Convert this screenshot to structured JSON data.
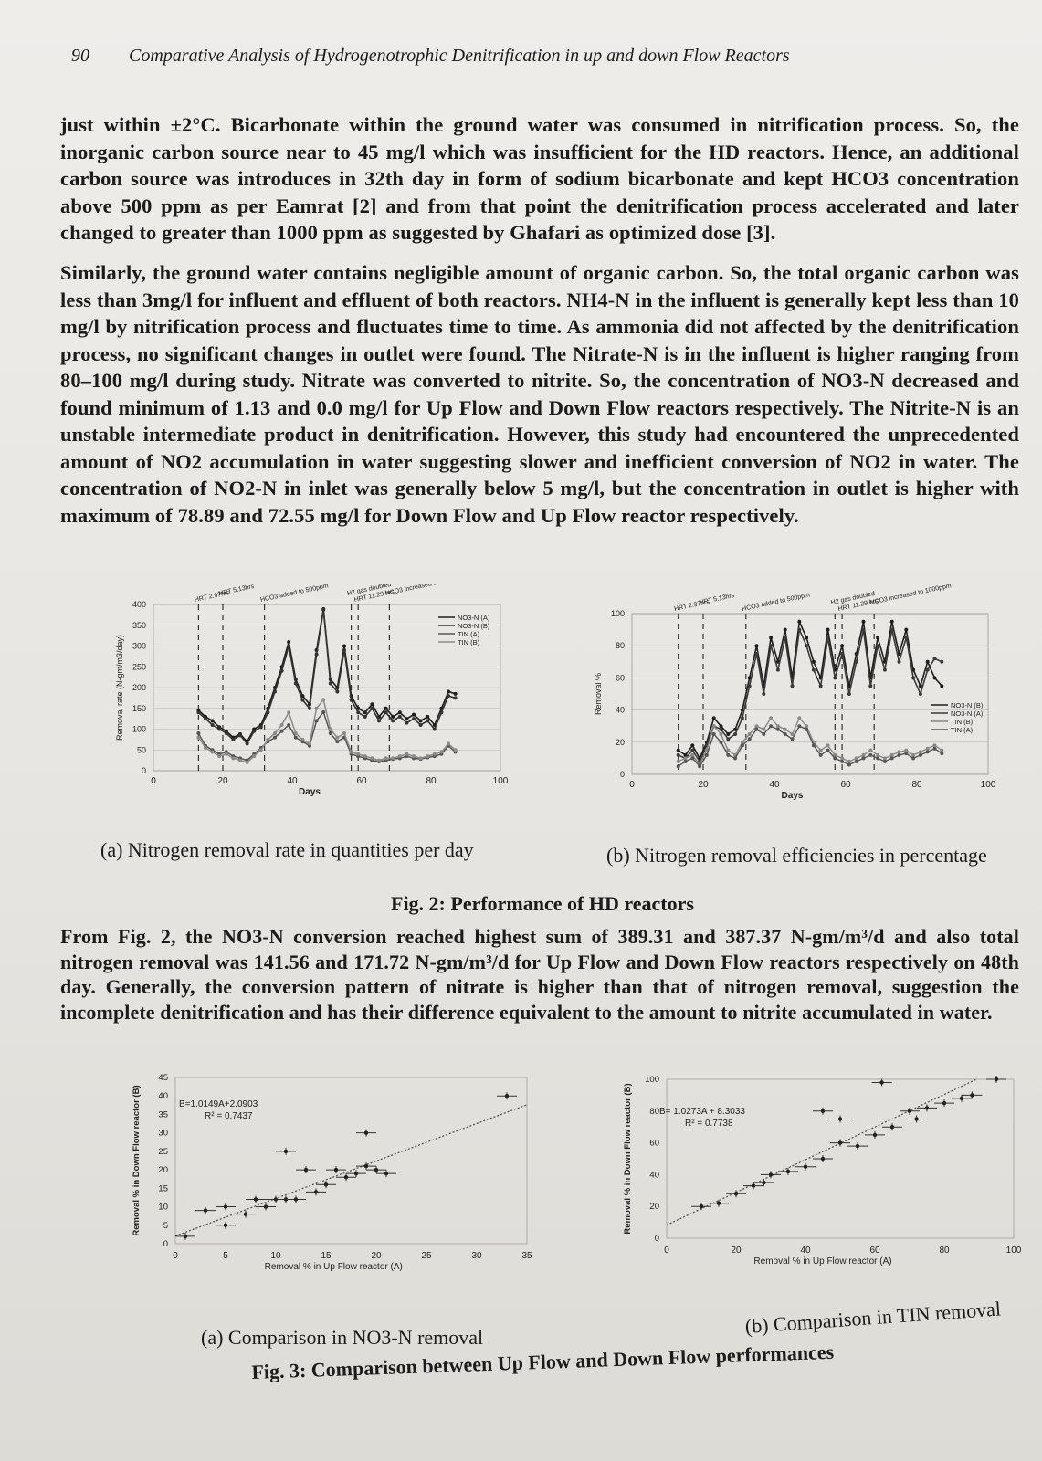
{
  "header": {
    "page_number": "90",
    "running_title": "Comparative Analysis of Hydrogenotrophic Denitrification in up and down Flow Reactors"
  },
  "paragraphs": {
    "p1": "just within ±2°C. Bicarbonate within the ground water was consumed in nitrification process. So, the inorganic carbon source near to 45 mg/l which was insufficient for the HD reactors. Hence, an additional carbon source was introduces in 32th day in form of sodium bicarbonate and kept HCO3 concentration above 500 ppm as per Eamrat [2] and from that point the denitrification process accelerated and later changed to greater than 1000 ppm as suggested by Ghafari as optimized dose [3].",
    "p2": "Similarly, the ground water contains negligible amount of organic carbon. So, the total organic carbon was less than 3mg/l for influent and effluent of both reactors. NH4-N in the influent is generally kept less than 10 mg/l by nitrification process and fluctuates time to time. As ammonia did not affected by the denitrification process, no significant changes in outlet were found. The Nitrate-N is in the influent is higher ranging from 80–100 mg/l during study. Nitrate was converted to nitrite. So, the concentration of NO3-N decreased and found minimum of 1.13 and 0.0 mg/l for Up Flow and Down Flow reactors respectively. The Nitrite-N is an unstable intermediate product in denitrification. However, this study had encountered the unprecedented amount of NO2 accumulation in water suggesting slower and inefficient conversion of NO2 in water. The concentration of NO2-N in inlet was generally below 5 mg/l, but the concentration in outlet is higher with maximum of 78.89 and 72.55 mg/l for Down Flow and Up Flow reactor respectively.",
    "p3": "From Fig. 2, the NO3-N conversion reached highest sum of 389.31 and 387.37 N-gm/m³/d and also total nitrogen removal was 141.56 and 171.72 N-gm/m³/d for Up Flow and Down Flow reactors respectively on 48th day. Generally, the conversion pattern of nitrate is higher than that of nitrogen removal, suggestion the incomplete denitrification and has their difference equivalent to the amount to nitrite accumulated in water."
  },
  "fig2": {
    "caption_a": "(a)  Nitrogen removal rate in quantities per day",
    "caption_b": "(b)  Nitrogen removal efficiencies in percentage",
    "title": "Fig. 2: Performance of HD reactors"
  },
  "fig3": {
    "caption_a": "(a)  Comparison in NO3-N removal",
    "caption_b": "(b)  Comparison in TIN removal",
    "title": "Fig. 3: Comparison between Up Flow and Down Flow performances"
  },
  "chart_data": [
    {
      "id": "fig2a",
      "type": "line",
      "xlabel": "Days",
      "ylabel": "Removal rate (N-gm/m3/day)",
      "xlim": [
        0,
        100
      ],
      "ylim": [
        0,
        400
      ],
      "xticks": [
        0,
        20,
        40,
        60,
        80,
        100
      ],
      "yticks": [
        0,
        50,
        100,
        150,
        200,
        250,
        300,
        350,
        400
      ],
      "grid": true,
      "legend_position": "top-right",
      "annotations": [
        {
          "x": 13,
          "text": "HRT 2.97hrs"
        },
        {
          "x": 20,
          "text": "HRT 5.13hrs"
        },
        {
          "x": 32,
          "text": "HCO3 added to 500ppm"
        },
        {
          "x": 57,
          "text": "H2 gas doubled"
        },
        {
          "x": 59,
          "text": "HRT 11.29 hrs"
        },
        {
          "x": 68,
          "text": "HCO3 increased to 1000ppm"
        }
      ],
      "x": [
        13,
        15,
        17,
        19,
        21,
        23,
        25,
        27,
        29,
        31,
        33,
        35,
        37,
        39,
        41,
        43,
        45,
        47,
        49,
        51,
        53,
        55,
        57,
        59,
        61,
        63,
        65,
        67,
        69,
        71,
        73,
        75,
        77,
        79,
        81,
        83,
        85,
        87
      ],
      "series": [
        {
          "name": "NO3-N (A)",
          "values": [
            145,
            130,
            120,
            105,
            95,
            80,
            88,
            70,
            100,
            110,
            150,
            200,
            250,
            310,
            220,
            180,
            160,
            290,
            389,
            220,
            200,
            300,
            180,
            150,
            140,
            160,
            130,
            150,
            130,
            140,
            125,
            135,
            120,
            130,
            110,
            150,
            190,
            185
          ]
        },
        {
          "name": "NO3-N (B)",
          "values": [
            140,
            125,
            110,
            100,
            90,
            75,
            85,
            65,
            95,
            105,
            140,
            190,
            240,
            300,
            210,
            170,
            150,
            280,
            387,
            210,
            190,
            290,
            170,
            140,
            130,
            150,
            120,
            140,
            120,
            130,
            115,
            125,
            110,
            120,
            100,
            140,
            180,
            175
          ]
        },
        {
          "name": "TIN (A)",
          "values": [
            90,
            60,
            50,
            40,
            45,
            35,
            30,
            25,
            40,
            55,
            70,
            80,
            95,
            110,
            80,
            70,
            60,
            120,
            141,
            90,
            70,
            80,
            40,
            35,
            30,
            25,
            22,
            25,
            28,
            30,
            35,
            30,
            28,
            32,
            35,
            40,
            60,
            45
          ]
        },
        {
          "name": "TIN (B)",
          "values": [
            80,
            55,
            45,
            35,
            40,
            30,
            25,
            20,
            35,
            50,
            75,
            90,
            110,
            140,
            90,
            75,
            65,
            150,
            171,
            100,
            80,
            90,
            45,
            40,
            35,
            30,
            25,
            30,
            30,
            35,
            40,
            35,
            30,
            35,
            40,
            45,
            65,
            50
          ]
        }
      ]
    },
    {
      "id": "fig2b",
      "type": "line",
      "xlabel": "Days",
      "ylabel": "Removal %",
      "xlim": [
        0,
        100
      ],
      "ylim": [
        0,
        100
      ],
      "xticks": [
        0,
        20,
        40,
        60,
        80,
        100
      ],
      "yticks": [
        0,
        20,
        40,
        60,
        80,
        100
      ],
      "grid": true,
      "legend_position": "right",
      "annotations": [
        {
          "x": 13,
          "text": "HRT 2.97hrs"
        },
        {
          "x": 20,
          "text": "HRT 5.13hrs"
        },
        {
          "x": 32,
          "text": "HCO3 added to 500ppm"
        },
        {
          "x": 57,
          "text": "H2 gas doubled"
        },
        {
          "x": 59,
          "text": "HRT 11.29 hrs"
        },
        {
          "x": 68,
          "text": "HCO3 increased to 1000ppm"
        }
      ],
      "x": [
        13,
        15,
        17,
        19,
        21,
        23,
        25,
        27,
        29,
        31,
        33,
        35,
        37,
        39,
        41,
        43,
        45,
        47,
        49,
        51,
        53,
        55,
        57,
        59,
        61,
        63,
        65,
        67,
        69,
        71,
        73,
        75,
        77,
        79,
        81,
        83,
        85,
        87
      ],
      "series": [
        {
          "name": "NO3-N (B)",
          "values": [
            15,
            12,
            18,
            10,
            20,
            35,
            30,
            25,
            28,
            40,
            60,
            80,
            55,
            85,
            70,
            90,
            60,
            95,
            85,
            70,
            60,
            90,
            65,
            80,
            55,
            75,
            95,
            60,
            85,
            70,
            95,
            75,
            90,
            65,
            55,
            70,
            60,
            55
          ]
        },
        {
          "name": "NO3-N (A)",
          "values": [
            12,
            10,
            15,
            8,
            18,
            30,
            28,
            22,
            25,
            35,
            55,
            75,
            50,
            80,
            65,
            85,
            55,
            90,
            80,
            65,
            55,
            85,
            60,
            75,
            50,
            70,
            90,
            55,
            80,
            65,
            90,
            70,
            85,
            60,
            50,
            65,
            72,
            70
          ]
        },
        {
          "name": "TIN (B)",
          "values": [
            8,
            10,
            12,
            6,
            15,
            30,
            25,
            15,
            12,
            20,
            25,
            30,
            28,
            35,
            30,
            28,
            25,
            35,
            30,
            20,
            15,
            18,
            12,
            10,
            8,
            10,
            12,
            15,
            12,
            10,
            12,
            14,
            15,
            12,
            14,
            16,
            18,
            15
          ]
        },
        {
          "name": "TIN (A)",
          "values": [
            5,
            8,
            10,
            5,
            12,
            25,
            20,
            12,
            10,
            18,
            22,
            28,
            25,
            30,
            28,
            25,
            22,
            30,
            28,
            18,
            12,
            15,
            10,
            8,
            6,
            8,
            10,
            12,
            10,
            8,
            10,
            12,
            13,
            10,
            12,
            14,
            16,
            13
          ]
        }
      ]
    },
    {
      "id": "fig3a",
      "type": "scatter",
      "xlabel": "Removal % in Up Flow reactor (A)",
      "ylabel": "Removal % in Down Flow reactor (B)",
      "xlim": [
        0,
        35
      ],
      "ylim": [
        0,
        45
      ],
      "xticks": [
        0,
        5,
        10,
        15,
        20,
        25,
        30,
        35
      ],
      "yticks": [
        0,
        5,
        10,
        15,
        20,
        25,
        30,
        35,
        40,
        45
      ],
      "equation": "B=1.0149A+2.0903",
      "r_squared": "R² = 0.7437",
      "points": [
        [
          1,
          2
        ],
        [
          3,
          9
        ],
        [
          5,
          5
        ],
        [
          5,
          10
        ],
        [
          7,
          8
        ],
        [
          8,
          12
        ],
        [
          9,
          10
        ],
        [
          10,
          12
        ],
        [
          11,
          12
        ],
        [
          12,
          12
        ],
        [
          13,
          20
        ],
        [
          14,
          14
        ],
        [
          15,
          16
        ],
        [
          16,
          20
        ],
        [
          17,
          18
        ],
        [
          18,
          19
        ],
        [
          19,
          21
        ],
        [
          20,
          20
        ],
        [
          21,
          19
        ],
        [
          19,
          30
        ],
        [
          11,
          25
        ],
        [
          33,
          40
        ]
      ],
      "trendline": {
        "slope": 1.0149,
        "intercept": 2.0903
      }
    },
    {
      "id": "fig3b",
      "type": "scatter",
      "xlabel": "Removal % in Up Flow reactor (A)",
      "ylabel": "Removal % in Down Flow reactor (B)",
      "xlim": [
        0,
        100
      ],
      "ylim": [
        0,
        100
      ],
      "xticks": [
        0,
        20,
        40,
        60,
        80,
        100
      ],
      "yticks": [
        0,
        20,
        40,
        60,
        80,
        100
      ],
      "equation": "B= 1.0273A + 8.3033",
      "r_squared": "R² = 0.7738",
      "points": [
        [
          10,
          20
        ],
        [
          15,
          22
        ],
        [
          20,
          28
        ],
        [
          25,
          33
        ],
        [
          30,
          40
        ],
        [
          28,
          35
        ],
        [
          35,
          42
        ],
        [
          40,
          45
        ],
        [
          45,
          50
        ],
        [
          50,
          60
        ],
        [
          55,
          58
        ],
        [
          60,
          65
        ],
        [
          65,
          70
        ],
        [
          70,
          80
        ],
        [
          72,
          75
        ],
        [
          75,
          82
        ],
        [
          80,
          85
        ],
        [
          85,
          88
        ],
        [
          88,
          90
        ],
        [
          95,
          100
        ],
        [
          62,
          98
        ],
        [
          50,
          75
        ],
        [
          45,
          80
        ]
      ],
      "trendline": {
        "slope": 1.0273,
        "intercept": 8.3033
      }
    }
  ]
}
